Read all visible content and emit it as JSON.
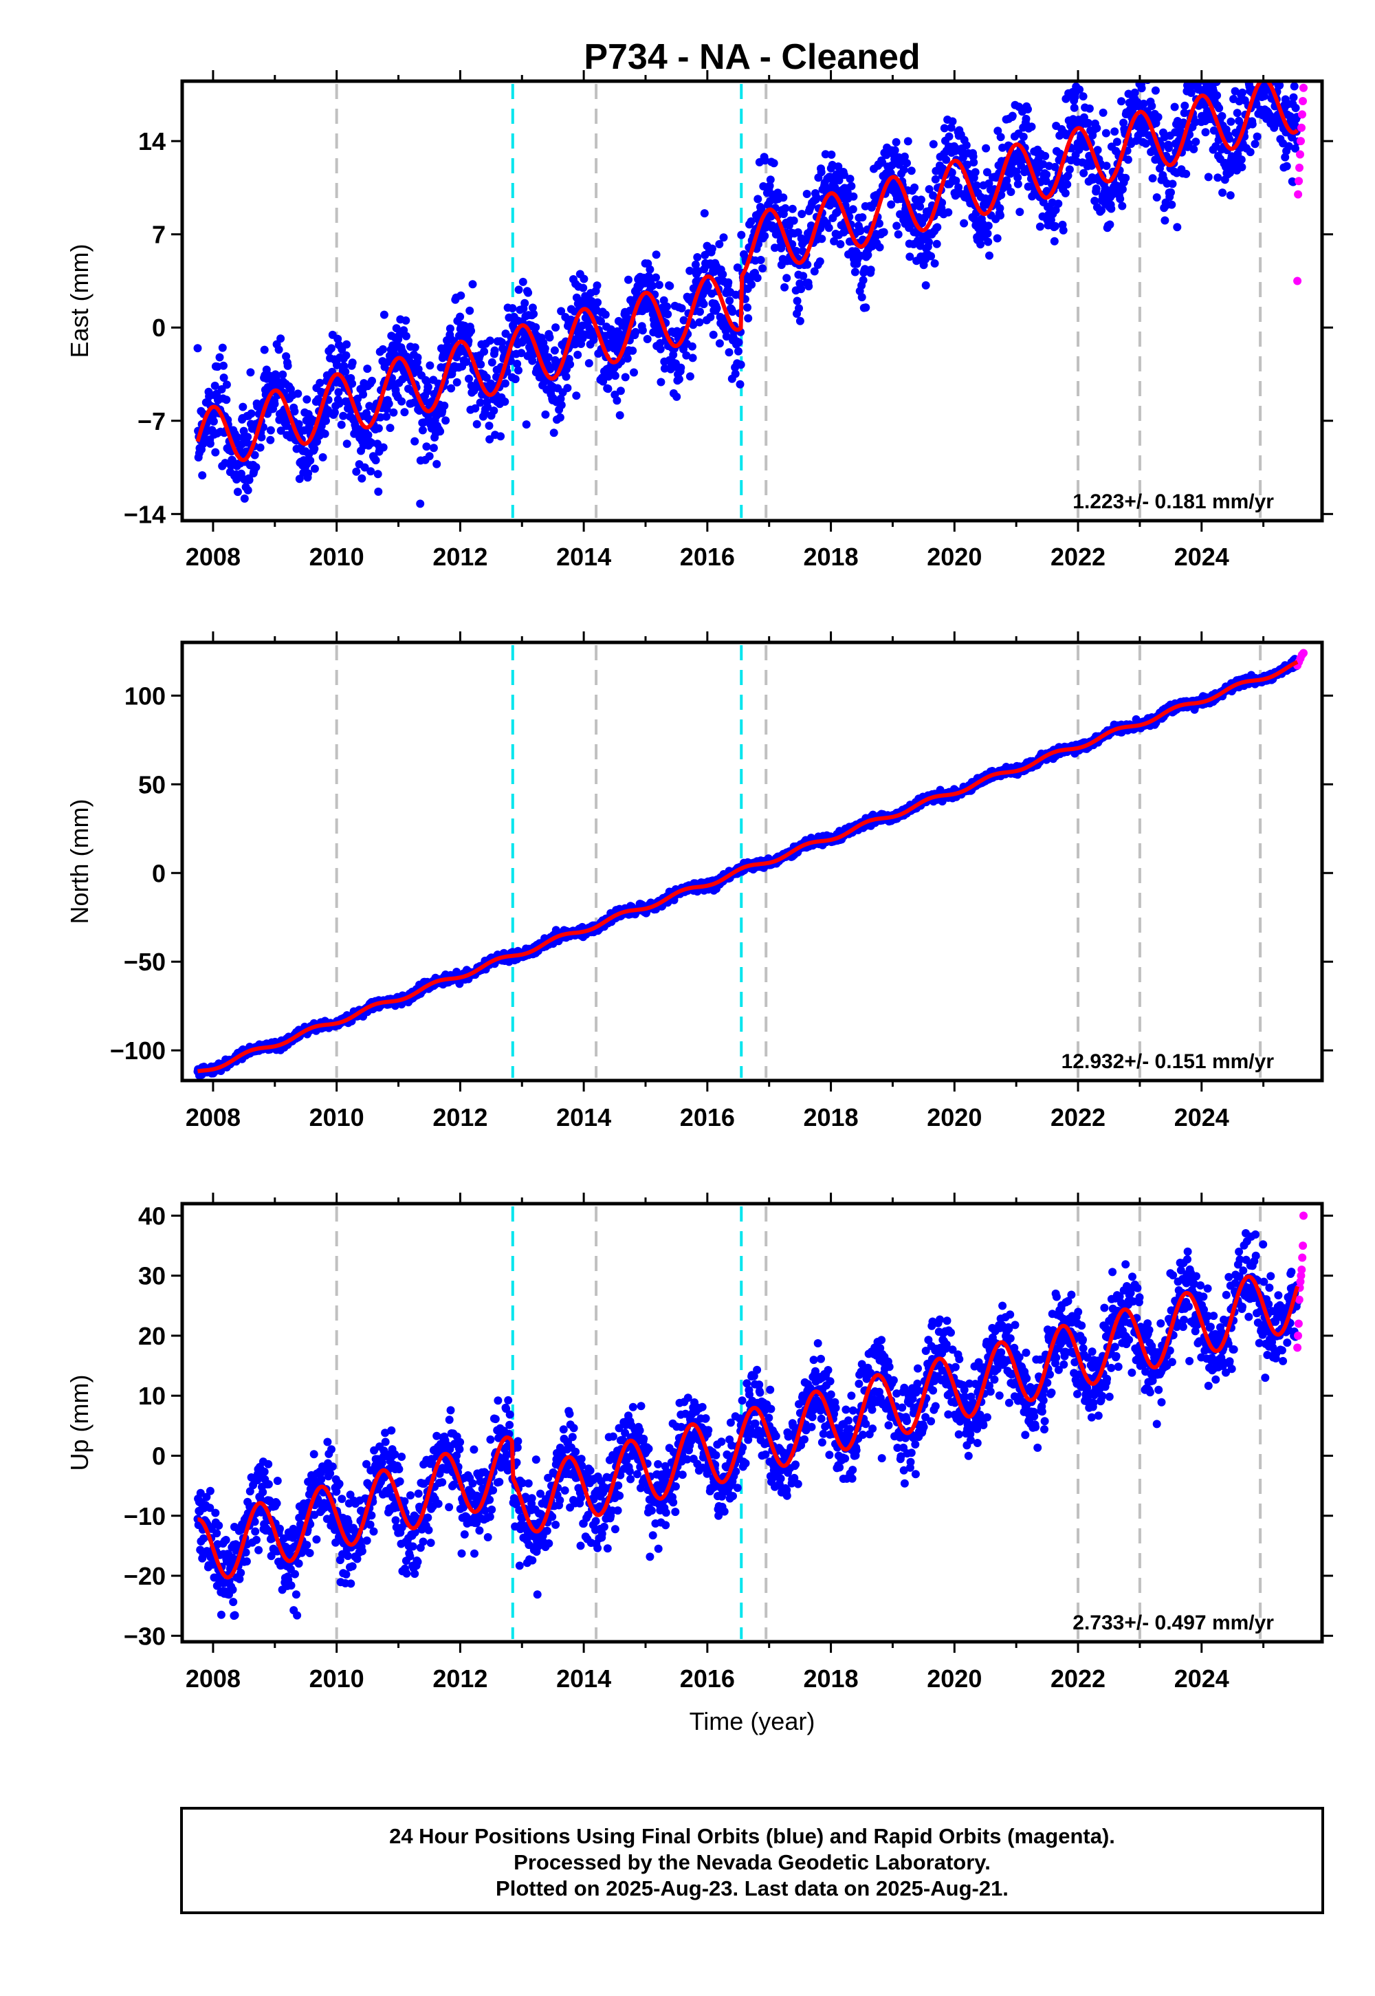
{
  "title": "P734  - NA - Cleaned",
  "xlabel": "Time (year)",
  "footer": {
    "line1": "24 Hour Positions Using Final Orbits (blue) and Rapid Orbits (magenta).",
    "line2": "Processed by the Nevada Geodetic Laboratory.",
    "line3": "Plotted on 2025-Aug-23. Last data on 2025-Aug-21."
  },
  "colors": {
    "final_orbits": "#0000ff",
    "rapid_orbits": "#ff00ff",
    "model_fit": "#ff0000",
    "equipment_change": "#c0c0c0",
    "earthquake": "#00e5ee"
  },
  "chart_data": [
    {
      "type": "scatter",
      "ylabel": "East (mm)",
      "xlim": [
        2007.5,
        2025.95
      ],
      "ylim": [
        -14.5,
        18.5
      ],
      "yticks": [
        -14,
        -7,
        0,
        7,
        14
      ],
      "xticks": [
        2008,
        2010,
        2012,
        2014,
        2016,
        2018,
        2020,
        2022,
        2024
      ],
      "rate_label": "1.223+/- 0.181 mm/yr",
      "trend": {
        "rate": 1.223,
        "offset_at_2007.8": -8.5
      },
      "seasonal": {
        "amplitude": 2.3,
        "phase_peak": 0.0
      },
      "scatter_sd": 1.8,
      "step_offsets": [
        {
          "at": 2016.55,
          "jump": 3.8
        }
      ],
      "vlines_gray": [
        2010.0,
        2014.2,
        2016.95,
        2022.0,
        2023.0,
        2024.95
      ],
      "vlines_cyan": [
        2012.85,
        2016.55
      ],
      "final_range": [
        2007.75,
        2025.55
      ],
      "rapid_range": [
        2025.55,
        2025.65
      ],
      "rapid_values": [
        3.5,
        10,
        11,
        12,
        13,
        14,
        15,
        16,
        17,
        18
      ]
    },
    {
      "type": "scatter",
      "ylabel": "North (mm)",
      "xlim": [
        2007.5,
        2025.95
      ],
      "ylim": [
        -117,
        130
      ],
      "yticks": [
        -100,
        -50,
        0,
        50,
        100
      ],
      "xticks": [
        2008,
        2010,
        2012,
        2014,
        2016,
        2018,
        2020,
        2022,
        2024
      ],
      "rate_label": "12.932+/- 0.151 mm/yr",
      "trend": {
        "rate": 12.932,
        "offset_at_2007.8": -112
      },
      "seasonal": {
        "amplitude": 1.5,
        "phase_peak": 0.6
      },
      "scatter_sd": 1.2,
      "step_offsets": [],
      "vlines_gray": [
        2010.0,
        2014.2,
        2016.95,
        2022.0,
        2023.0,
        2024.95
      ],
      "vlines_cyan": [
        2012.85,
        2016.55
      ],
      "final_range": [
        2007.75,
        2025.55
      ],
      "rapid_range": [
        2025.55,
        2025.65
      ],
      "rapid_values": [
        117,
        119,
        121,
        123,
        124
      ]
    },
    {
      "type": "scatter",
      "ylabel": "Up (mm)",
      "xlim": [
        2007.5,
        2025.95
      ],
      "ylim": [
        -31,
        42
      ],
      "yticks": [
        -30,
        -20,
        -10,
        0,
        10,
        20,
        30,
        40
      ],
      "xticks": [
        2008,
        2010,
        2012,
        2014,
        2016,
        2018,
        2020,
        2022,
        2024
      ],
      "rate_label": "2.733+/- 0.497 mm/yr",
      "trend": {
        "rate": 2.733,
        "offset_at_2007.8": -16
      },
      "seasonal": {
        "amplitude": 5.5,
        "phase_peak": 0.75
      },
      "scatter_sd": 3.5,
      "step_offsets": [
        {
          "at": 2012.85,
          "jump": -6
        }
      ],
      "vlines_gray": [
        2010.0,
        2014.2,
        2016.95,
        2022.0,
        2023.0,
        2024.95
      ],
      "vlines_cyan": [
        2012.85,
        2016.55
      ],
      "final_range": [
        2007.75,
        2025.55
      ],
      "rapid_range": [
        2025.55,
        2025.65
      ],
      "rapid_values": [
        18,
        20,
        22,
        26,
        28,
        29,
        30,
        31,
        33,
        35,
        40
      ]
    }
  ]
}
